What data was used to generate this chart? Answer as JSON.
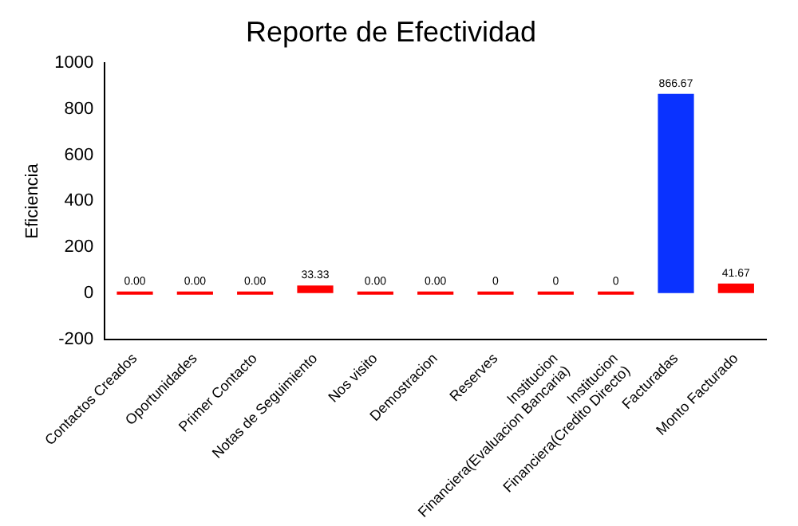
{
  "chart_data": {
    "type": "bar",
    "title": "Reporte de Efectividad",
    "ylabel": "Eficiencia",
    "categories": [
      "Contactos Creados",
      "Oportunidades",
      "Primer Contacto",
      "Notas de Seguimiento",
      "Nos visito",
      "Demostracion",
      "Reserves",
      "Institucion Financiera(Evaluacion Bancaria)",
      "Institucion Financiera(Credito Directo)",
      "Facturadas",
      "Monto Facturado"
    ],
    "values": [
      0,
      0,
      0,
      33.33,
      0,
      0,
      0,
      0,
      0,
      866.67,
      41.67
    ],
    "colors": [
      "#ff0000",
      "#ff0000",
      "#ff0000",
      "#ff0000",
      "#ff0000",
      "#ff0000",
      "#ff0000",
      "#ff0000",
      "#ff0000",
      "#0a32ff",
      "#ff0000"
    ],
    "value_labels": [
      "0.00",
      "0.00",
      "0.00",
      "33.33",
      "0.00",
      "0.00",
      "0",
      "0",
      "0",
      "866.67",
      "41.67"
    ],
    "ylim": [
      -200,
      1000
    ],
    "yticks": [
      -200,
      0,
      200,
      400,
      600,
      800,
      1000
    ],
    "grid": false,
    "legend": false
  }
}
